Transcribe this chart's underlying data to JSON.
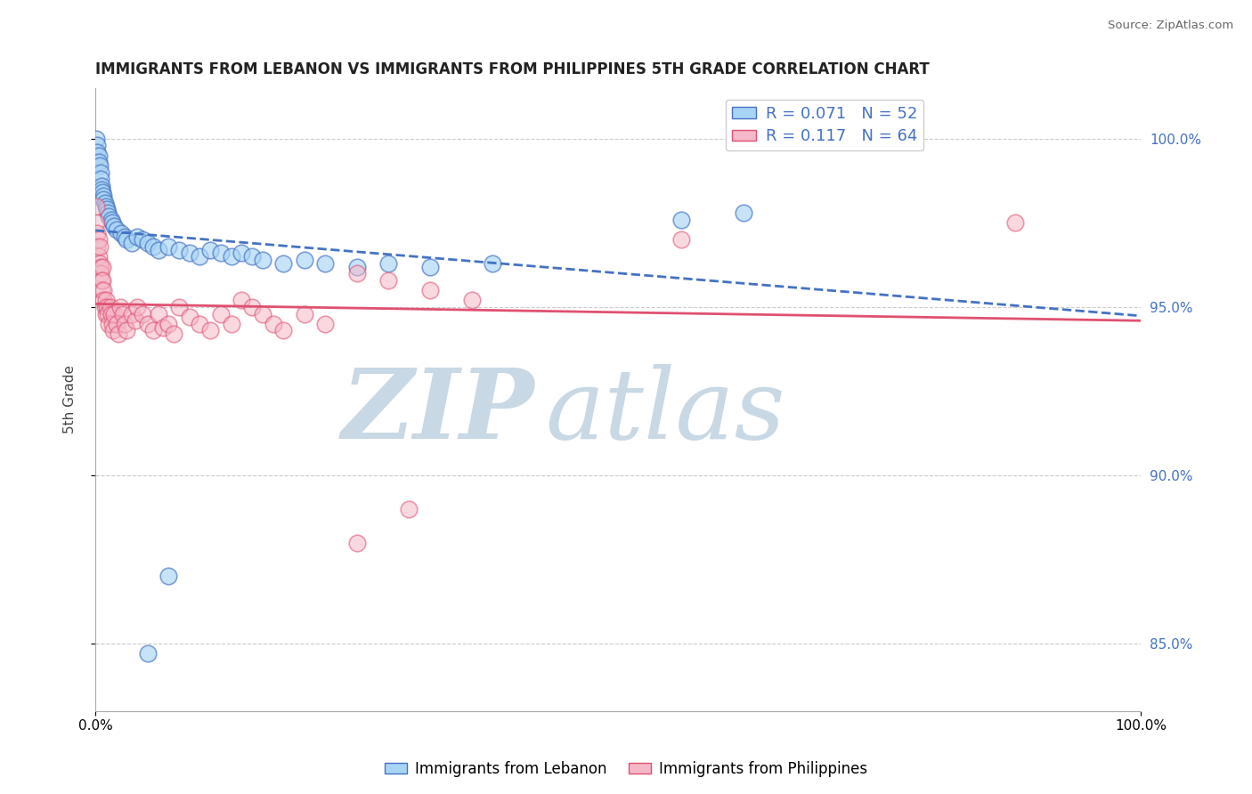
{
  "title": "IMMIGRANTS FROM LEBANON VS IMMIGRANTS FROM PHILIPPINES 5TH GRADE CORRELATION CHART",
  "source": "Source: ZipAtlas.com",
  "ylabel": "5th Grade",
  "legend_label1": "Immigrants from Lebanon",
  "legend_label2": "Immigrants from Philippines",
  "r1": 0.071,
  "n1": 52,
  "r2": 0.117,
  "n2": 64,
  "color1": "#a8d4f5",
  "color2": "#f5b8c8",
  "line_color1": "#4472c4",
  "line_color2": "#e05070",
  "watermark_zip": "ZIP",
  "watermark_atlas": "atlas",
  "watermark_color_zip": "#c5d8e8",
  "watermark_color_atlas": "#c5d8e8",
  "xlim": [
    0.0,
    1.0
  ],
  "ylim": [
    0.83,
    1.015
  ],
  "yticks": [
    0.85,
    0.9,
    0.95,
    1.0
  ],
  "ytick_labels": [
    "85.0%",
    "90.0%",
    "95.0%",
    "100.0%"
  ],
  "grid_color": "#cccccc",
  "lebanon_x": [
    0.001,
    0.002,
    0.002,
    0.003,
    0.003,
    0.004,
    0.005,
    0.005,
    0.006,
    0.006,
    0.007,
    0.008,
    0.008,
    0.009,
    0.01,
    0.011,
    0.012,
    0.013,
    0.015,
    0.016,
    0.018,
    0.02,
    0.025,
    0.028,
    0.03,
    0.035,
    0.04,
    0.045,
    0.05,
    0.055,
    0.06,
    0.07,
    0.08,
    0.09,
    0.1,
    0.11,
    0.12,
    0.13,
    0.14,
    0.15,
    0.16,
    0.18,
    0.2,
    0.22,
    0.25,
    0.28,
    0.32,
    0.38,
    0.05,
    0.07,
    0.56,
    0.62
  ],
  "lebanon_y": [
    1.0,
    0.998,
    0.996,
    0.995,
    0.993,
    0.992,
    0.99,
    0.988,
    0.986,
    0.985,
    0.984,
    0.983,
    0.982,
    0.981,
    0.98,
    0.979,
    0.978,
    0.977,
    0.976,
    0.975,
    0.974,
    0.973,
    0.972,
    0.971,
    0.97,
    0.969,
    0.971,
    0.97,
    0.969,
    0.968,
    0.967,
    0.968,
    0.967,
    0.966,
    0.965,
    0.967,
    0.966,
    0.965,
    0.966,
    0.965,
    0.964,
    0.963,
    0.964,
    0.963,
    0.962,
    0.963,
    0.962,
    0.963,
    0.847,
    0.87,
    0.976,
    0.978
  ],
  "philippines_x": [
    0.001,
    0.001,
    0.002,
    0.002,
    0.003,
    0.003,
    0.004,
    0.004,
    0.005,
    0.005,
    0.006,
    0.006,
    0.007,
    0.007,
    0.008,
    0.008,
    0.009,
    0.01,
    0.01,
    0.011,
    0.012,
    0.013,
    0.014,
    0.015,
    0.016,
    0.017,
    0.018,
    0.02,
    0.022,
    0.024,
    0.026,
    0.028,
    0.03,
    0.035,
    0.038,
    0.04,
    0.045,
    0.05,
    0.055,
    0.06,
    0.065,
    0.07,
    0.075,
    0.08,
    0.09,
    0.1,
    0.11,
    0.12,
    0.13,
    0.14,
    0.15,
    0.16,
    0.17,
    0.18,
    0.2,
    0.22,
    0.25,
    0.28,
    0.32,
    0.36,
    0.25,
    0.3,
    0.56,
    0.88
  ],
  "philippines_y": [
    0.98,
    0.975,
    0.972,
    0.968,
    0.97,
    0.965,
    0.968,
    0.963,
    0.962,
    0.96,
    0.958,
    0.955,
    0.962,
    0.958,
    0.955,
    0.952,
    0.95,
    0.948,
    0.952,
    0.95,
    0.948,
    0.945,
    0.95,
    0.948,
    0.945,
    0.943,
    0.948,
    0.945,
    0.942,
    0.95,
    0.948,
    0.945,
    0.943,
    0.948,
    0.946,
    0.95,
    0.948,
    0.945,
    0.943,
    0.948,
    0.944,
    0.945,
    0.942,
    0.95,
    0.947,
    0.945,
    0.943,
    0.948,
    0.945,
    0.952,
    0.95,
    0.948,
    0.945,
    0.943,
    0.948,
    0.945,
    0.96,
    0.958,
    0.955,
    0.952,
    0.88,
    0.89,
    0.97,
    0.975
  ]
}
